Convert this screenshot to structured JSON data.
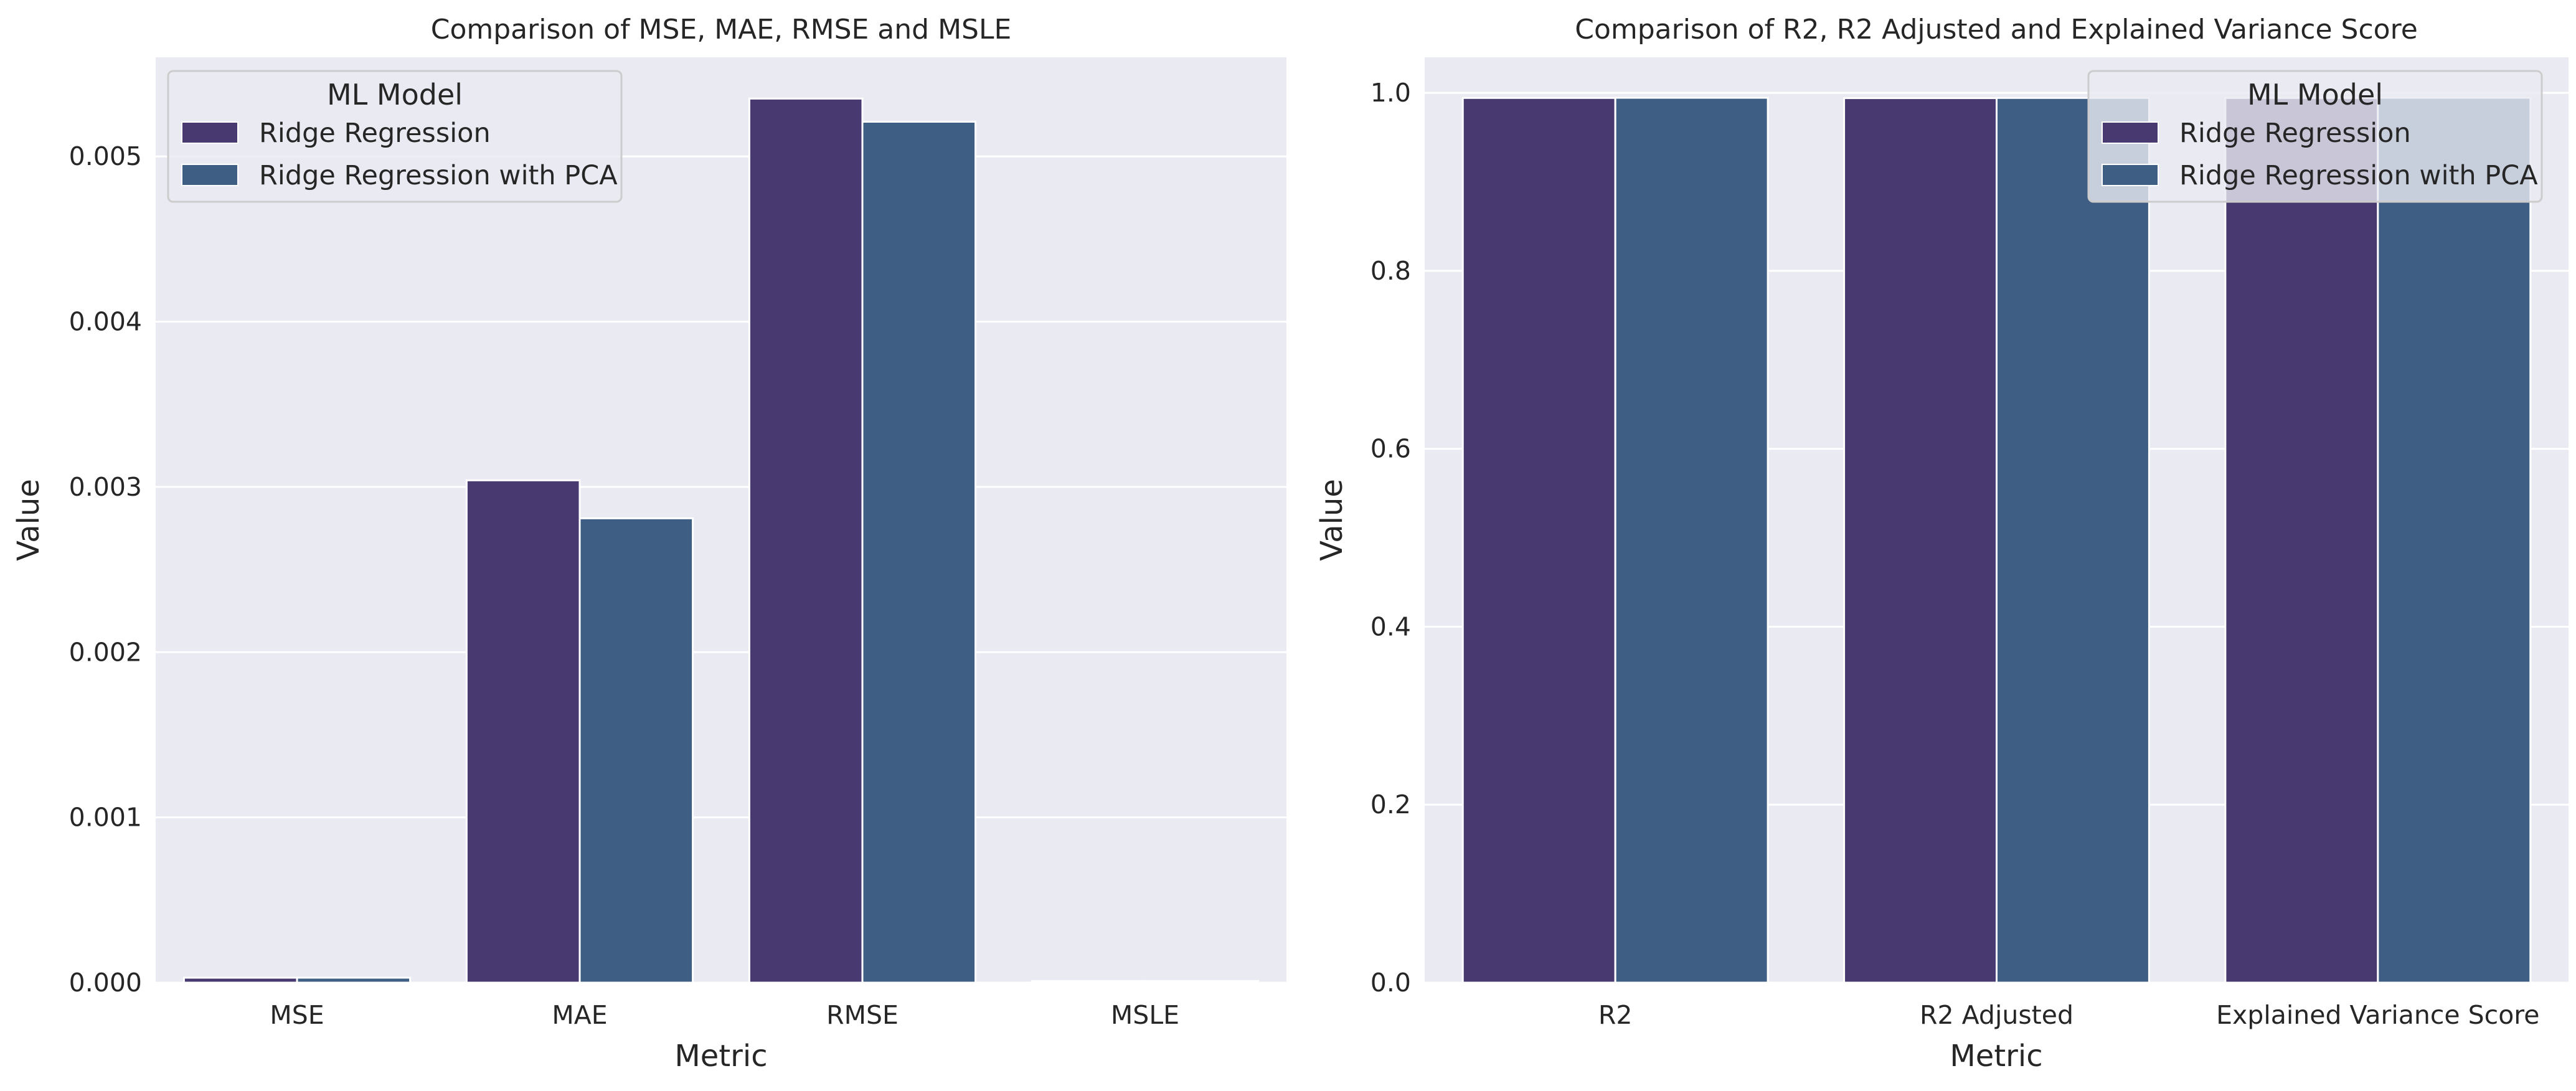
{
  "colors": {
    "background": "#eaeaf2",
    "grid": "#ffffff",
    "series": [
      "#483a70",
      "#3f5e83"
    ]
  },
  "chart_data": [
    {
      "type": "bar",
      "title": "Comparison of MSE, MAE, RMSE and MSLE",
      "xlabel": "Metric",
      "ylabel": "Value",
      "categories": [
        "MSE",
        "MAE",
        "RMSE",
        "MSLE"
      ],
      "series": [
        {
          "name": "Ridge Regression",
          "values": [
            3e-05,
            0.00304,
            0.00535,
            1e-05
          ]
        },
        {
          "name": "Ridge Regression with PCA",
          "values": [
            3e-05,
            0.00281,
            0.00521,
            1e-05
          ]
        }
      ],
      "ylim": [
        0,
        0.0056
      ],
      "yticks": [
        0,
        0.001,
        0.002,
        0.003,
        0.004,
        0.005
      ],
      "ytick_labels": [
        "0.000",
        "0.001",
        "0.002",
        "0.003",
        "0.004",
        "0.005"
      ],
      "grid": true,
      "legend": {
        "title": "ML Model",
        "placement": "top-left"
      }
    },
    {
      "type": "bar",
      "title": "Comparison of R2, R2 Adjusted and Explained Variance Score",
      "xlabel": "Metric",
      "ylabel": "Value",
      "categories": [
        "R2",
        "R2 Adjusted",
        "Explained Variance Score"
      ],
      "series": [
        {
          "name": "Ridge Regression",
          "values": [
            0.9943,
            0.9941,
            0.9943
          ]
        },
        {
          "name": "Ridge Regression with PCA",
          "values": [
            0.9945,
            0.9943,
            0.9945
          ]
        }
      ],
      "ylim": [
        0,
        1.04
      ],
      "yticks": [
        0,
        0.2,
        0.4,
        0.6,
        0.8,
        1.0
      ],
      "ytick_labels": [
        "0.0",
        "0.2",
        "0.4",
        "0.6",
        "0.8",
        "1.0"
      ],
      "grid": true,
      "legend": {
        "title": "ML Model",
        "placement": "top-right"
      }
    }
  ]
}
